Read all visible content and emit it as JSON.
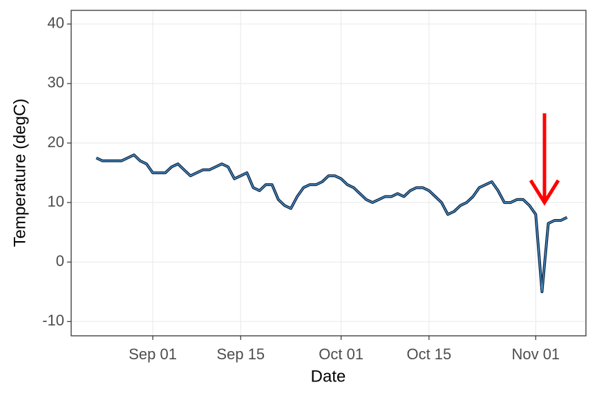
{
  "chart_data": {
    "type": "line",
    "x_label": "Date",
    "y_label": "Temperature (degC)",
    "x": [
      "Aug 23",
      "Aug 24",
      "Aug 25",
      "Aug 26",
      "Aug 27",
      "Aug 28",
      "Aug 29",
      "Aug 30",
      "Aug 31",
      "Sep 01",
      "Sep 02",
      "Sep 03",
      "Sep 04",
      "Sep 05",
      "Sep 06",
      "Sep 07",
      "Sep 08",
      "Sep 09",
      "Sep 10",
      "Sep 11",
      "Sep 12",
      "Sep 13",
      "Sep 14",
      "Sep 15",
      "Sep 16",
      "Sep 17",
      "Sep 18",
      "Sep 19",
      "Sep 20",
      "Sep 21",
      "Sep 22",
      "Sep 23",
      "Sep 24",
      "Sep 25",
      "Sep 26",
      "Sep 27",
      "Sep 28",
      "Sep 29",
      "Sep 30",
      "Oct 01",
      "Oct 02",
      "Oct 03",
      "Oct 04",
      "Oct 05",
      "Oct 06",
      "Oct 07",
      "Oct 08",
      "Oct 09",
      "Oct 10",
      "Oct 11",
      "Oct 12",
      "Oct 13",
      "Oct 14",
      "Oct 15",
      "Oct 16",
      "Oct 17",
      "Oct 18",
      "Oct 19",
      "Oct 20",
      "Oct 21",
      "Oct 22",
      "Oct 23",
      "Oct 24",
      "Oct 25",
      "Oct 26",
      "Oct 27",
      "Oct 28",
      "Oct 29",
      "Oct 30",
      "Oct 31",
      "Nov 01",
      "Nov 02",
      "Nov 03",
      "Nov 04",
      "Nov 05",
      "Nov 06"
    ],
    "series": [
      {
        "color": "#0d2a4a",
        "values": [
          17.5,
          17,
          17,
          17,
          17,
          17.5,
          18,
          17,
          16.5,
          15,
          15,
          15,
          16,
          16.5,
          15.5,
          14.5,
          15,
          15.5,
          15.5,
          16,
          16.5,
          16,
          14,
          14.5,
          15,
          12.5,
          12,
          13,
          13,
          10.5,
          9.5,
          9,
          11,
          12.5,
          13,
          13,
          13.5,
          14.5,
          14.5,
          14,
          13,
          12.5,
          11.5,
          10.5,
          10,
          10.5,
          11,
          11,
          11.5,
          11,
          12,
          12.5,
          12.5,
          12,
          11,
          10,
          8,
          8.5,
          9.5,
          10,
          11,
          12.5,
          13,
          13.5,
          12,
          10,
          10,
          10.5,
          10.5,
          9.5,
          8,
          -5,
          6.5,
          7,
          7,
          7.5
        ]
      }
    ],
    "xlim": [
      "Aug 19",
      "Nov 09"
    ],
    "xticks": [
      "Sep 01",
      "Sep 15",
      "Oct 01",
      "Oct 15",
      "Nov 01"
    ],
    "ylim": [
      -12.4,
      42.3
    ],
    "yticks": [
      -10,
      0,
      10,
      20,
      30,
      40
    ],
    "grid": true
  }
}
